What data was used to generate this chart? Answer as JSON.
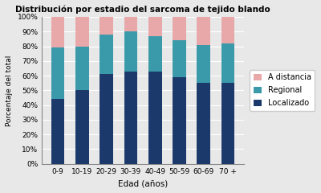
{
  "categories": [
    "0-9",
    "10-19",
    "20-29",
    "30-39",
    "40-49",
    "50-59",
    "60-69",
    "70 +"
  ],
  "localizado": [
    44,
    50,
    61,
    63,
    63,
    59,
    55,
    55
  ],
  "regional": [
    35,
    30,
    27,
    27,
    24,
    25,
    26,
    27
  ],
  "a_distancia": [
    21,
    20,
    12,
    10,
    13,
    16,
    19,
    18
  ],
  "color_localizado": "#1b3a6b",
  "color_regional": "#3a9aaa",
  "color_a_distancia": "#e8a8aa",
  "title": "Distribución por estadio del sarcoma de tejido blando",
  "xlabel": "Edad (años)",
  "ylabel": "Porcentaje del total",
  "legend_labels": [
    "A distancia",
    "Regional",
    "Localizado"
  ],
  "yticks": [
    0,
    10,
    20,
    30,
    40,
    50,
    60,
    70,
    80,
    90,
    100
  ],
  "ytick_labels": [
    "0%",
    "10%",
    "20%",
    "30%",
    "40%",
    "50%",
    "60%",
    "70%",
    "80%",
    "90%",
    "100%"
  ],
  "bg_color": "#e8e8e8",
  "plot_bg_color": "#e8e8e8"
}
